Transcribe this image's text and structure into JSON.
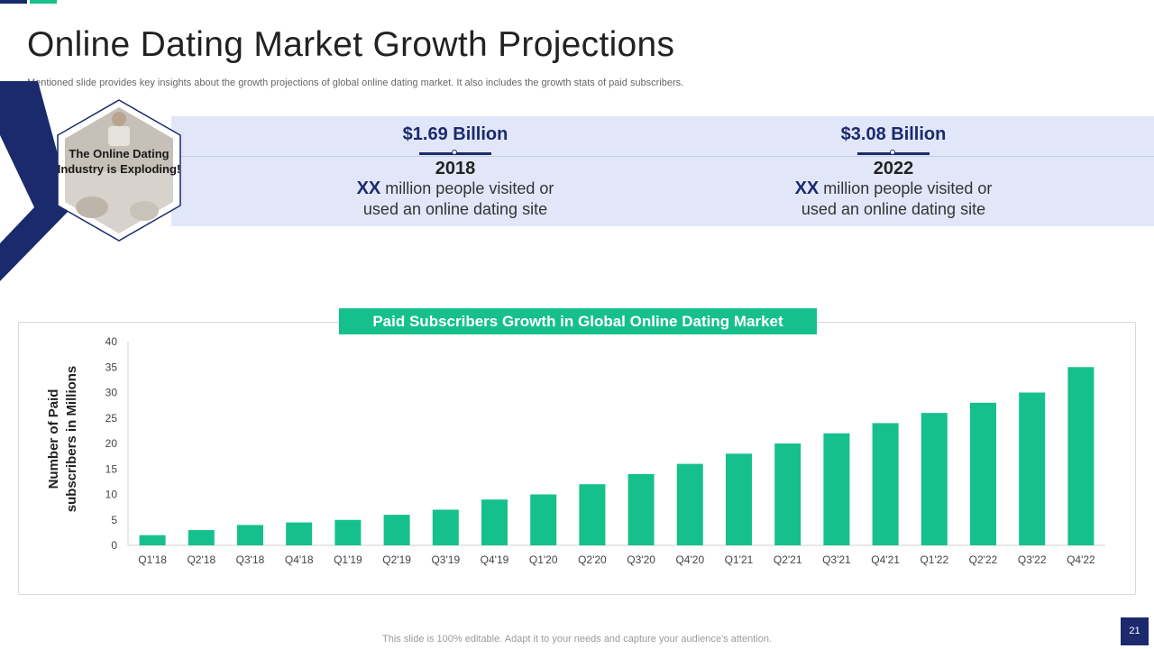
{
  "title": "Online Dating Market Growth Projections",
  "subtitle": "Mentioned slide provides key insights about the growth projections of global online dating market. It also includes the growth  stats of paid subscribers.",
  "hexagon": {
    "text": "The Online Dating Industry is Exploding!"
  },
  "stats": [
    {
      "amount": "$1.69 Billion",
      "year": "2018",
      "highlight": "XX",
      "desc_line1": "million people visited or",
      "desc_line2": "used an online dating site"
    },
    {
      "amount": "$3.08 Billion",
      "year": "2022",
      "highlight": "XX",
      "desc_line1": "million people visited or",
      "desc_line2": "used an online dating site"
    }
  ],
  "colors": {
    "navy": "#1a2a6c",
    "green": "#16c08c",
    "band": "#e1e7f8"
  },
  "chart_data": {
    "type": "bar",
    "title": "Paid Subscribers Growth in Global Online Dating Market",
    "xlabel": "",
    "ylabel": "Number of Paid subscribers in Millions",
    "ylabel_lines": [
      "Number of Paid",
      "subscribers in Millions"
    ],
    "ylim": [
      0,
      40
    ],
    "yticks": [
      0,
      5,
      10,
      15,
      20,
      25,
      30,
      35,
      40
    ],
    "categories": [
      "Q1'18",
      "Q2'18",
      "Q3'18",
      "Q4'18",
      "Q1'19",
      "Q2'19",
      "Q3'19",
      "Q4'19",
      "Q1'20",
      "Q2'20",
      "Q3'20",
      "Q4'20",
      "Q1'21",
      "Q2'21",
      "Q3'21",
      "Q4'21",
      "Q1'22",
      "Q2'22",
      "Q3'22",
      "Q4'22"
    ],
    "values": [
      2,
      3,
      4,
      4.5,
      5,
      6,
      7,
      9,
      10,
      12,
      14,
      16,
      18,
      20,
      22,
      24,
      26,
      28,
      30,
      35
    ],
    "grid": false,
    "bar_color": "#16c08c"
  },
  "footer": "This slide is 100% editable. Adapt it to your needs and capture your audience's attention.",
  "page_number": "21"
}
